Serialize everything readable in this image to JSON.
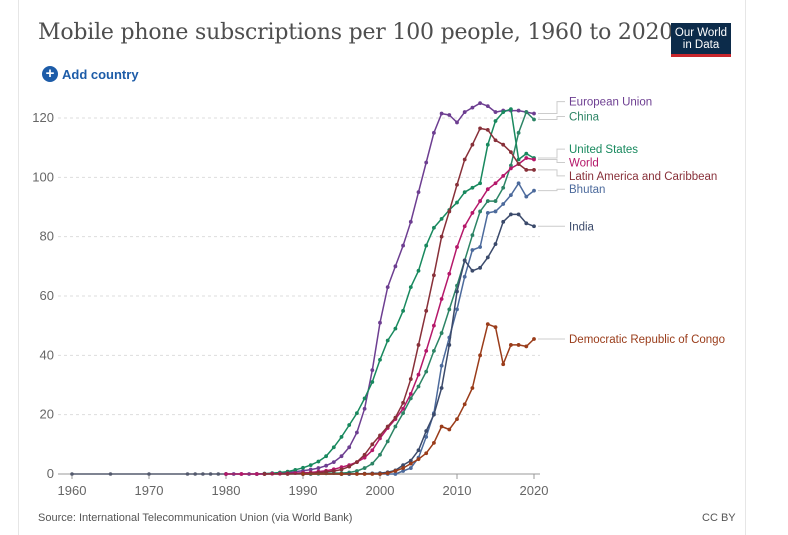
{
  "header": {
    "title": "Mobile phone subscriptions per 100 people, 1960 to 2020",
    "logo_line1": "Our World",
    "logo_line2": "in Data",
    "add_country_label": "Add country",
    "add_icon": "plus-circle-icon"
  },
  "footer": {
    "source": "Source: International Telecommunication Union (via World Bank)",
    "license": "CC BY"
  },
  "chart_data": {
    "type": "line",
    "title": "Mobile phone subscriptions per 100 people, 1960 to 2020",
    "xlabel": "",
    "ylabel": "",
    "xlim": [
      1959,
      2021
    ],
    "ylim": [
      0,
      125
    ],
    "x_ticks": [
      1960,
      1970,
      1980,
      1990,
      2000,
      2010,
      2020
    ],
    "y_ticks": [
      0,
      20,
      40,
      60,
      80,
      100,
      120
    ],
    "grid": true,
    "legend": "right (labels at line ends)",
    "baseline_points": [
      1960,
      1965,
      1970,
      1975,
      1976,
      1977,
      1978,
      1979
    ],
    "series": [
      {
        "name": "European Union",
        "color": "#6d3e91",
        "label_value": 125.5,
        "points": [
          [
            1980,
            0
          ],
          [
            1981,
            0
          ],
          [
            1982,
            0
          ],
          [
            1983,
            0
          ],
          [
            1984,
            0
          ],
          [
            1985,
            0.1
          ],
          [
            1986,
            0.2
          ],
          [
            1987,
            0.3
          ],
          [
            1988,
            0.5
          ],
          [
            1989,
            0.8
          ],
          [
            1990,
            1.1
          ],
          [
            1991,
            1.5
          ],
          [
            1992,
            2.0
          ],
          [
            1993,
            2.8
          ],
          [
            1994,
            4.0
          ],
          [
            1995,
            6.0
          ],
          [
            1996,
            9.0
          ],
          [
            1997,
            14.0
          ],
          [
            1998,
            22.0
          ],
          [
            1999,
            35.0
          ],
          [
            2000,
            51.0
          ],
          [
            2001,
            63.0
          ],
          [
            2002,
            70.0
          ],
          [
            2003,
            77.0
          ],
          [
            2004,
            85.0
          ],
          [
            2005,
            95.0
          ],
          [
            2006,
            105.0
          ],
          [
            2007,
            115.0
          ],
          [
            2008,
            121.5
          ],
          [
            2009,
            121.0
          ],
          [
            2010,
            118.5
          ],
          [
            2011,
            122.0
          ],
          [
            2012,
            123.5
          ],
          [
            2013,
            125.0
          ],
          [
            2014,
            124.0
          ],
          [
            2015,
            122.0
          ],
          [
            2016,
            122.5
          ],
          [
            2017,
            122.5
          ],
          [
            2018,
            122.5
          ],
          [
            2019,
            122.0
          ],
          [
            2020,
            121.5
          ]
        ]
      },
      {
        "name": "China",
        "color": "#2c8465",
        "label_value": 120.5,
        "points": [
          [
            1980,
            0
          ],
          [
            1985,
            0
          ],
          [
            1990,
            0
          ],
          [
            1991,
            0
          ],
          [
            1992,
            0.1
          ],
          [
            1993,
            0.2
          ],
          [
            1994,
            0.3
          ],
          [
            1995,
            0.3
          ],
          [
            1996,
            0.5
          ],
          [
            1997,
            1.0
          ],
          [
            1998,
            2.0
          ],
          [
            1999,
            3.5
          ],
          [
            2000,
            6.5
          ],
          [
            2001,
            11.0
          ],
          [
            2002,
            16.0
          ],
          [
            2003,
            20.5
          ],
          [
            2004,
            25.5
          ],
          [
            2005,
            29.5
          ],
          [
            2006,
            34.5
          ],
          [
            2007,
            41.5
          ],
          [
            2008,
            47.5
          ],
          [
            2009,
            55.5
          ],
          [
            2010,
            63.5
          ],
          [
            2011,
            72.0
          ],
          [
            2012,
            80.5
          ],
          [
            2013,
            88.5
          ],
          [
            2014,
            92.0
          ],
          [
            2015,
            92.0
          ],
          [
            2016,
            96.5
          ],
          [
            2017,
            104.0
          ],
          [
            2018,
            115.0
          ],
          [
            2019,
            122.0
          ],
          [
            2020,
            119.5
          ]
        ]
      },
      {
        "name": "United States",
        "color": "#18895e",
        "label_value": 109.5,
        "points": [
          [
            1984,
            0
          ],
          [
            1985,
            0.1
          ],
          [
            1986,
            0.3
          ],
          [
            1987,
            0.5
          ],
          [
            1988,
            0.8
          ],
          [
            1989,
            1.4
          ],
          [
            1990,
            2.1
          ],
          [
            1991,
            3.0
          ],
          [
            1992,
            4.2
          ],
          [
            1993,
            6.0
          ],
          [
            1994,
            9.0
          ],
          [
            1995,
            12.5
          ],
          [
            1996,
            16.5
          ],
          [
            1997,
            20.5
          ],
          [
            1998,
            25.5
          ],
          [
            1999,
            31.0
          ],
          [
            2000,
            38.5
          ],
          [
            2001,
            45.0
          ],
          [
            2002,
            49.0
          ],
          [
            2003,
            55.0
          ],
          [
            2004,
            63.0
          ],
          [
            2005,
            68.5
          ],
          [
            2006,
            77.0
          ],
          [
            2007,
            83.0
          ],
          [
            2008,
            86.0
          ],
          [
            2009,
            89.0
          ],
          [
            2010,
            91.5
          ],
          [
            2011,
            95.0
          ],
          [
            2012,
            96.5
          ],
          [
            2013,
            98.0
          ],
          [
            2014,
            111.0
          ],
          [
            2015,
            119.0
          ],
          [
            2016,
            122.0
          ],
          [
            2017,
            123.0
          ],
          [
            2018,
            106.0
          ],
          [
            2019,
            108.0
          ],
          [
            2020,
            106.5
          ]
        ]
      },
      {
        "name": "World",
        "color": "#b5186a",
        "label_value": 105.0,
        "points": [
          [
            1980,
            0
          ],
          [
            1982,
            0
          ],
          [
            1984,
            0
          ],
          [
            1985,
            0
          ],
          [
            1986,
            0.1
          ],
          [
            1987,
            0.1
          ],
          [
            1988,
            0.2
          ],
          [
            1989,
            0.3
          ],
          [
            1990,
            0.4
          ],
          [
            1991,
            0.5
          ],
          [
            1992,
            0.8
          ],
          [
            1993,
            1.1
          ],
          [
            1994,
            1.6
          ],
          [
            1995,
            2.3
          ],
          [
            1996,
            3.0
          ],
          [
            1997,
            4.0
          ],
          [
            1998,
            5.5
          ],
          [
            1999,
            8.0
          ],
          [
            2000,
            12.0
          ],
          [
            2001,
            15.5
          ],
          [
            2002,
            18.5
          ],
          [
            2003,
            22.0
          ],
          [
            2004,
            27.0
          ],
          [
            2005,
            33.5
          ],
          [
            2006,
            41.5
          ],
          [
            2007,
            50.0
          ],
          [
            2008,
            59.0
          ],
          [
            2009,
            67.5
          ],
          [
            2010,
            76.5
          ],
          [
            2011,
            83.5
          ],
          [
            2012,
            88.0
          ],
          [
            2013,
            92.0
          ],
          [
            2014,
            96.0
          ],
          [
            2015,
            98.0
          ],
          [
            2016,
            100.5
          ],
          [
            2017,
            103.0
          ],
          [
            2018,
            104.5
          ],
          [
            2019,
            106.5
          ],
          [
            2020,
            106.0
          ]
        ]
      },
      {
        "name": "Latin America and Caribbean",
        "color": "#883039",
        "label_value": 100.5,
        "points": [
          [
            1985,
            0
          ],
          [
            1988,
            0
          ],
          [
            1990,
            0.1
          ],
          [
            1991,
            0.2
          ],
          [
            1992,
            0.4
          ],
          [
            1993,
            0.7
          ],
          [
            1994,
            1.0
          ],
          [
            1995,
            1.5
          ],
          [
            1996,
            2.5
          ],
          [
            1997,
            4.0
          ],
          [
            1998,
            6.5
          ],
          [
            1999,
            10.0
          ],
          [
            2000,
            13.0
          ],
          [
            2001,
            16.0
          ],
          [
            2002,
            19.0
          ],
          [
            2003,
            24.0
          ],
          [
            2004,
            32.0
          ],
          [
            2005,
            43.5
          ],
          [
            2006,
            55.0
          ],
          [
            2007,
            67.0
          ],
          [
            2008,
            80.0
          ],
          [
            2009,
            88.5
          ],
          [
            2010,
            97.5
          ],
          [
            2011,
            106.0
          ],
          [
            2012,
            111.0
          ],
          [
            2013,
            116.5
          ],
          [
            2014,
            116.0
          ],
          [
            2015,
            112.5
          ],
          [
            2016,
            111.0
          ],
          [
            2017,
            108.5
          ],
          [
            2018,
            104.5
          ],
          [
            2019,
            102.5
          ],
          [
            2020,
            102.5
          ]
        ]
      },
      {
        "name": "Bhutan",
        "color": "#4c6a9c",
        "label_value": 96.0,
        "points": [
          [
            1990,
            0
          ],
          [
            1995,
            0
          ],
          [
            2000,
            0
          ],
          [
            2001,
            0
          ],
          [
            2002,
            0
          ],
          [
            2003,
            1.0
          ],
          [
            2004,
            2.0
          ],
          [
            2005,
            5.5
          ],
          [
            2006,
            12.5
          ],
          [
            2007,
            20.5
          ],
          [
            2008,
            36.5
          ],
          [
            2009,
            46.0
          ],
          [
            2010,
            55.5
          ],
          [
            2011,
            66.5
          ],
          [
            2012,
            75.5
          ],
          [
            2013,
            76.5
          ],
          [
            2014,
            88.0
          ],
          [
            2015,
            88.5
          ],
          [
            2016,
            91.0
          ],
          [
            2017,
            94.0
          ],
          [
            2018,
            98.0
          ],
          [
            2019,
            93.5
          ],
          [
            2020,
            95.5
          ]
        ]
      },
      {
        "name": "India",
        "color": "#3b4a6b",
        "label_value": 83.5,
        "points": [
          [
            1990,
            0
          ],
          [
            1995,
            0
          ],
          [
            1996,
            0
          ],
          [
            1997,
            0.1
          ],
          [
            1998,
            0.1
          ],
          [
            1999,
            0.2
          ],
          [
            2000,
            0.3
          ],
          [
            2001,
            0.6
          ],
          [
            2002,
            1.2
          ],
          [
            2003,
            3.0
          ],
          [
            2004,
            4.5
          ],
          [
            2005,
            8.0
          ],
          [
            2006,
            14.5
          ],
          [
            2007,
            20.0
          ],
          [
            2008,
            29.0
          ],
          [
            2009,
            43.5
          ],
          [
            2010,
            61.5
          ],
          [
            2011,
            72.0
          ],
          [
            2012,
            68.5
          ],
          [
            2013,
            69.5
          ],
          [
            2014,
            73.0
          ],
          [
            2015,
            77.5
          ],
          [
            2016,
            85.0
          ],
          [
            2017,
            87.5
          ],
          [
            2018,
            87.5
          ],
          [
            2019,
            84.5
          ],
          [
            2020,
            83.5
          ]
        ]
      },
      {
        "name": "Democratic Republic of Congo",
        "color": "#9a3c1a",
        "label_value": 45.5,
        "points": [
          [
            1990,
            0
          ],
          [
            1995,
            0
          ],
          [
            1997,
            0
          ],
          [
            1998,
            0
          ],
          [
            1999,
            0
          ],
          [
            2000,
            0
          ],
          [
            2001,
            0.3
          ],
          [
            2002,
            1.0
          ],
          [
            2003,
            2.0
          ],
          [
            2004,
            3.5
          ],
          [
            2005,
            5.0
          ],
          [
            2006,
            7.0
          ],
          [
            2007,
            10.5
          ],
          [
            2008,
            16.0
          ],
          [
            2009,
            15.0
          ],
          [
            2010,
            18.5
          ],
          [
            2011,
            23.5
          ],
          [
            2012,
            29.0
          ],
          [
            2013,
            40.0
          ],
          [
            2014,
            50.5
          ],
          [
            2015,
            49.5
          ],
          [
            2016,
            37.0
          ],
          [
            2017,
            43.5
          ],
          [
            2018,
            43.5
          ],
          [
            2019,
            43.0
          ],
          [
            2020,
            45.5
          ]
        ]
      }
    ]
  }
}
